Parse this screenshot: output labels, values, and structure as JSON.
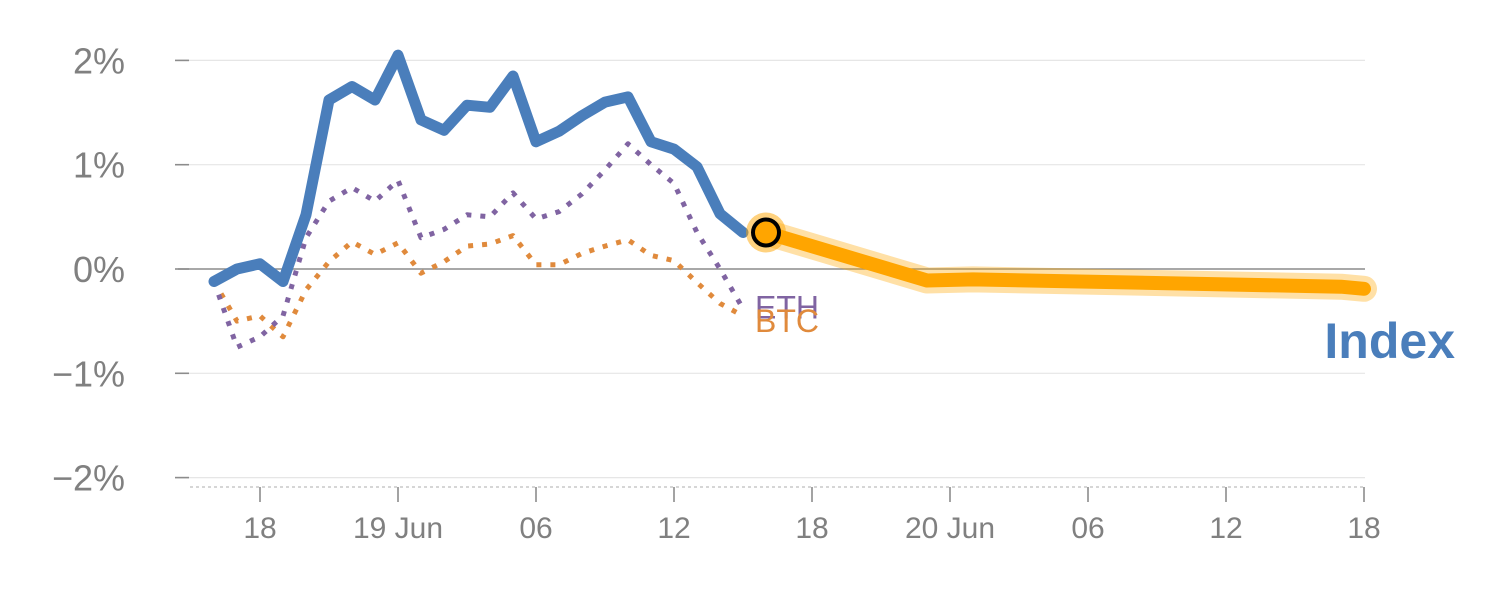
{
  "chart_data": {
    "type": "line",
    "title": "",
    "xlabel": "",
    "ylabel": "",
    "ylim": [
      -2.0,
      2.0
    ],
    "y_ticks": [
      {
        "value": 2,
        "label": "2%"
      },
      {
        "value": 1,
        "label": "1%"
      },
      {
        "value": 0,
        "label": "0%"
      },
      {
        "value": -1,
        "label": "−1%"
      },
      {
        "value": -2,
        "label": "−2%"
      }
    ],
    "x_range_hours": [
      -7,
      43
    ],
    "x_ticks": [
      {
        "hour": -6,
        "label": "18"
      },
      {
        "hour": 0,
        "label": "19 Jun"
      },
      {
        "hour": 6,
        "label": "06"
      },
      {
        "hour": 12,
        "label": "12"
      },
      {
        "hour": 18,
        "label": "18"
      },
      {
        "hour": 24,
        "label": "20 Jun"
      },
      {
        "hour": 30,
        "label": "06"
      },
      {
        "hour": 36,
        "label": "12"
      },
      {
        "hour": 42,
        "label": "18"
      }
    ],
    "grid": true,
    "series": [
      {
        "name": "Index",
        "color": "#4a7ebb",
        "style": "solid",
        "points": [
          [
            -8,
            -0.12
          ],
          [
            -7,
            0.0
          ],
          [
            -6,
            0.05
          ],
          [
            -5,
            -0.12
          ],
          [
            -4,
            0.52
          ],
          [
            -3,
            1.62
          ],
          [
            -2,
            1.75
          ],
          [
            -1,
            1.62
          ],
          [
            0,
            2.05
          ],
          [
            1,
            1.43
          ],
          [
            2,
            1.33
          ],
          [
            3,
            1.57
          ],
          [
            4,
            1.55
          ],
          [
            5,
            1.85
          ],
          [
            6,
            1.22
          ],
          [
            7,
            1.32
          ],
          [
            8,
            1.47
          ],
          [
            9,
            1.6
          ],
          [
            10,
            1.65
          ],
          [
            11,
            1.22
          ],
          [
            12,
            1.15
          ],
          [
            13,
            0.98
          ],
          [
            14,
            0.53
          ],
          [
            15,
            0.35
          ]
        ]
      },
      {
        "name": "ETH",
        "color": "#8064a2",
        "style": "dotted",
        "points": [
          [
            -8,
            -0.12
          ],
          [
            -7,
            -0.75
          ],
          [
            -6,
            -0.65
          ],
          [
            -5,
            -0.45
          ],
          [
            -4,
            0.3
          ],
          [
            -3,
            0.65
          ],
          [
            -2,
            0.78
          ],
          [
            -1,
            0.65
          ],
          [
            0,
            0.85
          ],
          [
            1,
            0.3
          ],
          [
            2,
            0.38
          ],
          [
            3,
            0.52
          ],
          [
            4,
            0.5
          ],
          [
            5,
            0.73
          ],
          [
            6,
            0.48
          ],
          [
            7,
            0.55
          ],
          [
            8,
            0.72
          ],
          [
            9,
            0.95
          ],
          [
            10,
            1.2
          ],
          [
            11,
            1.0
          ],
          [
            12,
            0.82
          ],
          [
            13,
            0.35
          ],
          [
            14,
            0.0
          ],
          [
            15,
            -0.38
          ]
        ]
      },
      {
        "name": "BTC",
        "color": "#e08a3c",
        "style": "dotted",
        "points": [
          [
            -8,
            -0.12
          ],
          [
            -7,
            -0.5
          ],
          [
            -6,
            -0.45
          ],
          [
            -5,
            -0.65
          ],
          [
            -4,
            -0.2
          ],
          [
            -3,
            0.07
          ],
          [
            -2,
            0.26
          ],
          [
            -1,
            0.14
          ],
          [
            0,
            0.25
          ],
          [
            1,
            -0.04
          ],
          [
            2,
            0.07
          ],
          [
            3,
            0.22
          ],
          [
            4,
            0.24
          ],
          [
            5,
            0.32
          ],
          [
            6,
            0.04
          ],
          [
            7,
            0.04
          ],
          [
            8,
            0.15
          ],
          [
            9,
            0.22
          ],
          [
            10,
            0.28
          ],
          [
            11,
            0.13
          ],
          [
            12,
            0.08
          ],
          [
            13,
            -0.13
          ],
          [
            14,
            -0.33
          ],
          [
            15,
            -0.45
          ]
        ]
      },
      {
        "name": "",
        "color": "#ffa500",
        "style": "forecast",
        "points": [
          [
            16,
            0.35
          ],
          [
            23,
            -0.11
          ],
          [
            25,
            -0.1
          ],
          [
            41,
            -0.17
          ],
          [
            42,
            -0.19
          ]
        ]
      }
    ],
    "marker": {
      "hour": 16,
      "value": 0.35,
      "fill": "#ffa500",
      "stroke": "#000000"
    },
    "labels": {
      "eth": "ETH",
      "btc": "BTC",
      "index": "Index"
    }
  }
}
